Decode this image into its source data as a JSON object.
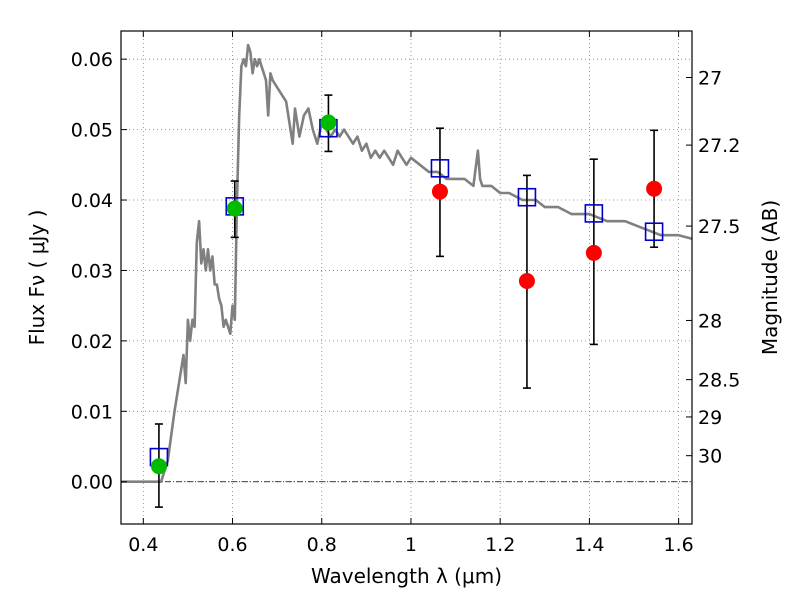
{
  "chart_data": {
    "type": "scatter",
    "xlabel": "Wavelength  λ (μm)",
    "ylabel": "Flux  Fν  ( μJy )",
    "ylabel_right": "Magnitude (AB)",
    "xlim": [
      0.35,
      1.63
    ],
    "ylim": [
      -0.006,
      0.064
    ],
    "grid": true,
    "x_ticks": [
      0.4,
      0.6,
      0.8,
      1.0,
      1.2,
      1.4,
      1.6
    ],
    "x_tick_labels": [
      "0.4",
      "0.6",
      "0.8",
      "1",
      "1.2",
      "1.4",
      "1.6"
    ],
    "y_ticks": [
      0.0,
      0.01,
      0.02,
      0.03,
      0.04,
      0.05,
      0.06
    ],
    "y_tick_labels": [
      "0.00",
      "0.01",
      "0.02",
      "0.03",
      "0.04",
      "0.05",
      "0.06"
    ],
    "right_ticks": [
      {
        "label": "27",
        "flux": 0.0574
      },
      {
        "label": "27.2",
        "flux": 0.0478
      },
      {
        "label": "27.5",
        "flux": 0.0363
      },
      {
        "label": "28",
        "flux": 0.0229
      },
      {
        "label": "28.5",
        "flux": 0.0145
      },
      {
        "label": "29",
        "flux": 0.0092
      },
      {
        "label": "30",
        "flux": 0.0037
      }
    ],
    "colors": {
      "model": "#808080",
      "photometry": "#00bb00",
      "spectral": "#ff0000",
      "synthetic": "#0000cc",
      "errorbar": "#000000",
      "grid": "#808080"
    },
    "model_spectrum": {
      "x": [
        0.35,
        0.39,
        0.42,
        0.44,
        0.455,
        0.47,
        0.48,
        0.49,
        0.495,
        0.5,
        0.505,
        0.51,
        0.515,
        0.52,
        0.525,
        0.53,
        0.535,
        0.54,
        0.545,
        0.55,
        0.555,
        0.56,
        0.565,
        0.57,
        0.575,
        0.58,
        0.585,
        0.59,
        0.595,
        0.6,
        0.605,
        0.61,
        0.615,
        0.62,
        0.625,
        0.63,
        0.635,
        0.64,
        0.645,
        0.65,
        0.655,
        0.66,
        0.665,
        0.67,
        0.675,
        0.68,
        0.685,
        0.69,
        0.7,
        0.71,
        0.72,
        0.73,
        0.735,
        0.74,
        0.745,
        0.75,
        0.76,
        0.77,
        0.78,
        0.79,
        0.8,
        0.81,
        0.82,
        0.83,
        0.84,
        0.85,
        0.86,
        0.87,
        0.88,
        0.89,
        0.9,
        0.91,
        0.92,
        0.93,
        0.94,
        0.95,
        0.96,
        0.97,
        0.98,
        0.99,
        1.0,
        1.02,
        1.04,
        1.06,
        1.08,
        1.1,
        1.12,
        1.14,
        1.15,
        1.155,
        1.16,
        1.18,
        1.2,
        1.22,
        1.25,
        1.28,
        1.3,
        1.33,
        1.36,
        1.4,
        1.44,
        1.48,
        1.52,
        1.56,
        1.6,
        1.63
      ],
      "y": [
        0.0,
        0.0,
        0.0,
        0.0,
        0.003,
        0.01,
        0.014,
        0.018,
        0.014,
        0.023,
        0.02,
        0.023,
        0.022,
        0.034,
        0.037,
        0.031,
        0.033,
        0.03,
        0.033,
        0.03,
        0.032,
        0.028,
        0.028,
        0.026,
        0.025,
        0.022,
        0.023,
        0.022,
        0.021,
        0.025,
        0.023,
        0.04,
        0.052,
        0.059,
        0.06,
        0.059,
        0.062,
        0.061,
        0.058,
        0.06,
        0.059,
        0.06,
        0.059,
        0.058,
        0.057,
        0.052,
        0.058,
        0.057,
        0.056,
        0.055,
        0.054,
        0.05,
        0.048,
        0.053,
        0.051,
        0.049,
        0.052,
        0.053,
        0.05,
        0.048,
        0.051,
        0.05,
        0.049,
        0.05,
        0.049,
        0.05,
        0.049,
        0.048,
        0.049,
        0.047,
        0.048,
        0.046,
        0.047,
        0.046,
        0.047,
        0.046,
        0.045,
        0.047,
        0.046,
        0.045,
        0.046,
        0.045,
        0.044,
        0.044,
        0.043,
        0.043,
        0.043,
        0.042,
        0.047,
        0.043,
        0.042,
        0.042,
        0.041,
        0.041,
        0.04,
        0.04,
        0.039,
        0.039,
        0.038,
        0.038,
        0.037,
        0.037,
        0.036,
        0.035,
        0.035,
        0.0345
      ]
    },
    "series": [
      {
        "marker": "filled-circle-green",
        "points": [
          {
            "x": 0.435,
            "y": 0.0022,
            "yerr_low": 0.0058,
            "yerr_high": 0.006
          },
          {
            "x": 0.605,
            "y": 0.0388,
            "yerr_low": 0.0041,
            "yerr_high": 0.0039
          },
          {
            "x": 0.815,
            "y": 0.051,
            "yerr_low": 0.0041,
            "yerr_high": 0.0039
          }
        ]
      },
      {
        "marker": "filled-circle-red",
        "points": [
          {
            "x": 1.065,
            "y": 0.0412,
            "yerr_low": 0.0092,
            "yerr_high": 0.009
          },
          {
            "x": 1.26,
            "y": 0.0285,
            "yerr_low": 0.0152,
            "yerr_high": 0.015
          },
          {
            "x": 1.41,
            "y": 0.0325,
            "yerr_low": 0.013,
            "yerr_high": 0.0133
          },
          {
            "x": 1.545,
            "y": 0.0416,
            "yerr_low": 0.0083,
            "yerr_high": 0.0083
          }
        ]
      },
      {
        "marker": "open-square-blue",
        "points": [
          {
            "x": 0.435,
            "y": 0.0035
          },
          {
            "x": 0.605,
            "y": 0.0391
          },
          {
            "x": 0.815,
            "y": 0.0502
          },
          {
            "x": 1.065,
            "y": 0.0445
          },
          {
            "x": 1.26,
            "y": 0.0404
          },
          {
            "x": 1.41,
            "y": 0.0381
          },
          {
            "x": 1.545,
            "y": 0.0355
          }
        ]
      }
    ]
  }
}
